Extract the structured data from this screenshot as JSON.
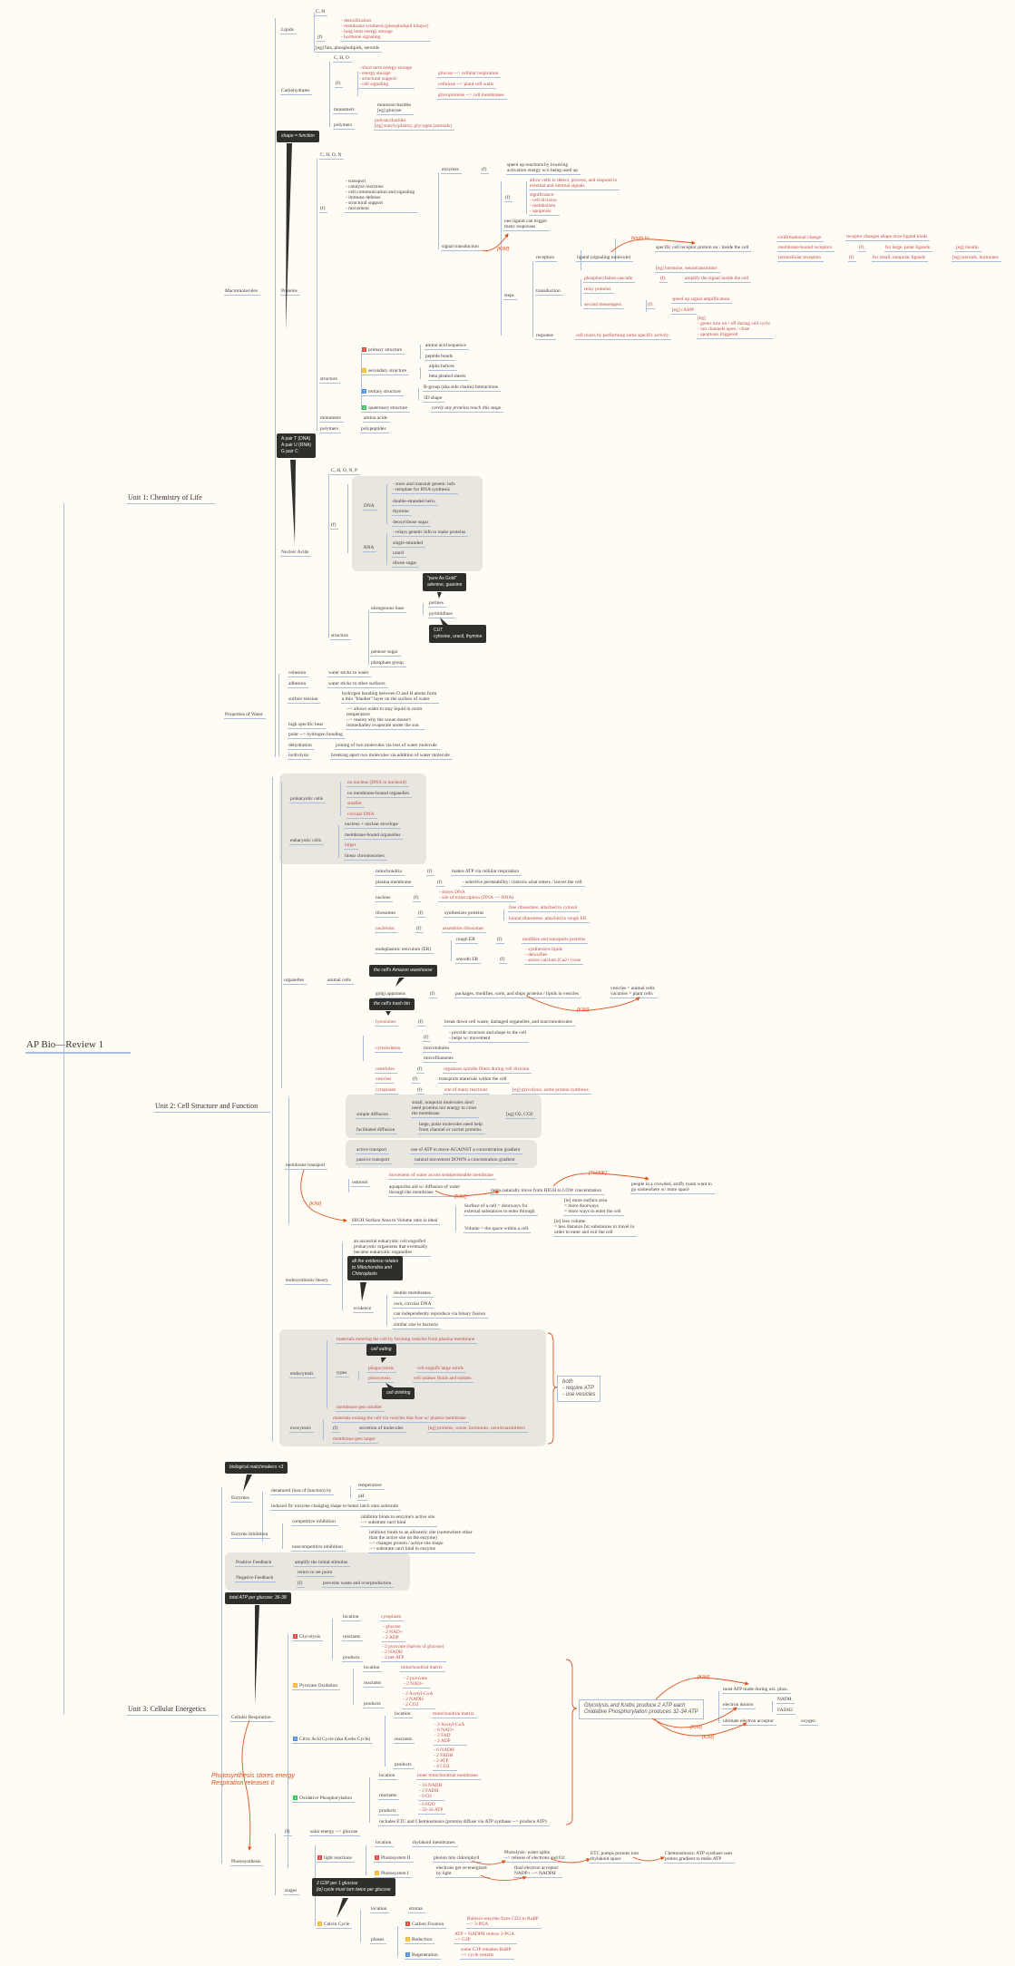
{
  "title": "AP Bio—Review 1",
  "badges": {
    "1": "1",
    "2": "2",
    "3": "3",
    "4": "4"
  },
  "badge_colors": {
    "1": "#e8473f",
    "2": "#f5b82e",
    "3": "#4a8ee8",
    "4": "#2fc45a"
  },
  "accent_color": "#e0531f",
  "nodes": {
    "unit1": "Unit 1: Chemistry of Life",
    "unit2": "Unit 2: Cell Structure and Function",
    "unit3": "Unit 3: Cellular Energetics",
    "macro": "Macromolecules",
    "lipids": "Lipids",
    "l_ch": "C, H",
    "l_f": "(f)",
    "l_flist": "- detoxification\n- membrane synthesis (phospholipid bilayer)\n- long term energy storage\n- hormone signaling",
    "l_eg": "[eg] fats, phospholipids, steroids",
    "carbs": "Carbohydrates",
    "c_cho": "C, H, O",
    "c_f": "(f)",
    "c_flist": "- short term energy storage\n- energy storage\n- structural support\n- cell signaling",
    "c_glu": "glucose --> cellular respiration",
    "c_cel": "cellulose --> plant cell walls",
    "c_gly": "glycoproteins --> cell membranes",
    "c_mon": "monomers",
    "c_monv": "monosaccharides\n[eg] glucose",
    "c_pol": "polymers",
    "c_polv": "polysaccharides\n[eg] starch (plants), glycogen (animals)",
    "co_shape": "shape = function",
    "proteins": "Proteins",
    "p_chon": "C, H, O, N",
    "p_f": "(f)",
    "p_flist": "- transport\n- catalyze reactions\n- cell communication and signaling\n- immune defense\n- structural support\n- movement",
    "enzymes": "enzymes",
    "e_f": "(f)",
    "e_v": "speed up reactions by lowering\nactivation energy w/o being used up",
    "sig": "signal transduction",
    "kim1": "[KIM]",
    "s_f": "(f)",
    "s_allow": "allow cells to detect, process, and respond to\nexternal and internal signals",
    "s_sig": "significance:\n- cell division\n- metabolism\n- apoptosis",
    "s_one": "one ligand can trigger\nmany responses",
    "steps": "steps",
    "reception": "reception",
    "ligand": "ligand (signaling molecule)",
    "binds": "binds to",
    "receptor": "specific cell receptor protein on / inside the cell",
    "r_eg": "[eg] hormone, neurotransmitter",
    "conf": "confirmational change",
    "conf_v": "receptor changes shape once ligand binds",
    "mbr": "membrane-bound receptors",
    "mbr_f": "(f)",
    "mbr_v": "for large, polar ligands",
    "mbr_eg": "[eg] insulin",
    "icr": "intracellular receptors",
    "icr_f": "(f)",
    "icr_v": "for small, nonpolar ligands",
    "icr_eg": "[eg] steroids, hormones",
    "transd": "transduction",
    "phos": "phosphorylation cascade",
    "phos_f": "(f)",
    "phos_v": "amplify the signal inside the cell",
    "relay": "relay proteins",
    "secm": "second messengers",
    "secm_f": "(f)",
    "secm_v": "speed up signal amplification",
    "secm_eg": "[eg] cAMP",
    "response": "response",
    "resp_v": "cell reacts by performing some specific activity",
    "resp_eg": "[eg]\n- genes turn on / off during cell cycle\n- ion channels open / close\n- apoptosis triggered",
    "structure": "structure",
    "prim": "primary structure",
    "prim1": "amino acid sequence",
    "prim2": "peptide bonds",
    "sec": "secondary structure",
    "sec1": "alpha helices",
    "sec2": "beta pleated sheets",
    "ter": "tertiary structure",
    "ter1": "R-group (aka side chains) interactions",
    "ter2": "3D shape",
    "quat": "quaternary structure",
    "quat1": "rarely any proteins reach this stage",
    "p_mon": "monomers",
    "p_monv": "amino acids",
    "p_pol": "polymers",
    "p_polv": "polypeptides",
    "co_pair": "A pair T (DNA)\nA pair U (RNA)\nG pair C",
    "nucleic": "Nucleic Acids",
    "n_chonp": "C, H, O, N, P",
    "n_f": "(f)",
    "dna": "DNA",
    "dna1": "- store and transmit genetic info\n- template for RNA synthesis",
    "dna2": "double-stranded helix",
    "dna3": "thymine",
    "dna4": "deoxyribose sugar",
    "rna": "RNA",
    "rna1": "- relays genetic info to make proteins",
    "rna2": "single-stranded",
    "rna3": "uracil",
    "rna4": "ribose sugar",
    "n_struct": "structure",
    "nbase": "nitrogenous base",
    "purines": "purines",
    "pyrim": "pyrimidines",
    "co_pag": "\"pure As Gold\"\nadenine, guanine",
    "co_cut": "CUT\ncytosine, uracil, thymine",
    "pentose": "pentose sugar",
    "phosph": "phosphate group",
    "water": "Properties of Water",
    "coh": "cohesion",
    "coh_v": "water sticks to water",
    "adh": "adhesion",
    "adh_v": "water sticks to other surfaces",
    "st": "surface tension",
    "st_v": "hydrogen bonding between O and H atoms form\na thin \"blanket\" layer on the surface of water",
    "shh": "high specific heat",
    "shh_v": "--> allows water to stay liquid in room\ntemperature\n--> reason why the ocean doesn't\nimmediatley evaporate under the sun",
    "polar": "polar --> hydrogen bonding",
    "dehy": "dehydration",
    "dehy_v": "joining of two molecules via loss of water molecule",
    "hydro": "hydrolysis",
    "hydro_v": "breaking apart two molecules via addition of water molecule",
    "prok": "prokaryotic cells",
    "prok1": "no nucleus (DNA in nucleoid)",
    "prok2": "no membrane-bound organelles",
    "prok3": "smaller",
    "prok4": "circular DNA",
    "euk": "eukaryotic cells",
    "euk1": "nucleus + nuclear envelope",
    "euk2": "membrane-bound organelles",
    "euk3": "larger",
    "euk4": "linear chromosomes",
    "organelles": "organelles",
    "animal": "animal cells",
    "mito": "mitochondria",
    "mito_f": "(f)",
    "mito_v": "makes ATP via cellular respiration",
    "pm": "plasma membrane",
    "pm_f": "(f)",
    "pm_v": "- selective permeability: controls what enters / leaves the cell",
    "nuc": "nucleus",
    "nuc_f": "(f)",
    "nuc_v": "- stores DNA\n- site of transcription (DNA --> RNA)",
    "ribo": "ribosomes",
    "ribo_f": "(f)",
    "ribo_v": "synthesizes proteins",
    "ribo1": "free ribosomes: attached to cytosol",
    "ribo2": "bound ribosomes: attached to rough ER",
    "nucl": "nucleolus",
    "nucl_f": "(f)",
    "nucl_v": "assembles ribosomes",
    "er": "endoplasmic reticulum (ER)",
    "rer": "rough ER",
    "rer_f": "(f)",
    "rer_v": "modifies and transports proteins",
    "ser": "smooth ER",
    "ser_f": "(f)",
    "ser_v": "- synthesizes lipids\n- detoxifies\n- stores calcium (Ca2+) ions",
    "co_amz": "the cell's Amazon warehouse",
    "golgi": "golgi apparatus",
    "golgi_f": "(f)",
    "golgi_v": "packages, modifies, sorts, and ships proteins / lipids in vesicles",
    "golgi_ves": "vesicles = animal cells\nvacuoles = plant cells",
    "kim2": "[KIM]",
    "co_trash": "the cell's trash bin",
    "lyso": "lysosomes",
    "lyso_f": "(f)",
    "lyso_v": "break down cell waste, damaged organelles, and macromolecules",
    "cyto": "cytoskeleton",
    "cyto_f": "(f)",
    "cyto_v": "- provide structure and shape to the cell\n- helps w/ movement",
    "cyto1": "microtubules",
    "cyto2": "microfilaments",
    "cent": "centrioles",
    "cent_f": "(f)",
    "cent_v": "organizes spindle fibers during cell division",
    "ves": "vesicles",
    "ves_f": "(f)",
    "ves_v": "transports materials within the cell",
    "cytop": "cytoplasm",
    "cytop_f": "(f)",
    "cytop_v": "site of many reactions",
    "cytop_eg": "[eg] glycolysis, some protein synthesis",
    "mt": "membrane transport",
    "sd": "simple diffusion",
    "sd_v": "small, nonpolar molecules don't\nneed proteins nor energy to cross\nthe membrane",
    "sd_eg": "[eg] O2, CO2",
    "fd": "facilitated diffusion",
    "fd_v": "large, polar molecules need help\nfrom channel or carrier proteins",
    "at": "active transport",
    "at_v": "use of ATP to move AGAINST a concentration gradient",
    "pt": "passive transport",
    "pt_v": "natural movement DOWN a concentration gradient",
    "osm": "osmosis",
    "osm1": "movement of water across semipermeable membrane",
    "osm2": "aquaporins aid w/ diffusion of water\nthrough the membrane",
    "osm3": "items naturally move from HIGH to LOW concentration",
    "think": "[THINK]",
    "osm4": "people in a crowded, stuffy room want to\ngo somewhere w/ more space",
    "kim3": "[KIM]",
    "kim4": "[KIM]",
    "sav": "HIGH Surface Area to Volume ratio is ideal",
    "sav1": "Surface of a cell = doorways for\nexternal substances to enter through",
    "sav1v": "[ie] more surface area\n= more doorways\n= more ways to enter the cell",
    "sav2": "Volume = the space within a cell",
    "sav2v": "[ie] less volume\n= less distance for substances to travel in\norder to enter and exit the cell",
    "endo": "endosymbiotic theory",
    "endo1": "an ancestral eukaryotic cell engulfed\nprokaryotic organisms that eventually\nbecame eukaryotic organelles",
    "co_evid": "all the evidence relates\nto Mitochondria and\nChloroplasts",
    "evid": "evidence",
    "ev1": "double membranes",
    "ev2": "own, circular DNA",
    "ev3": "can independently reproduce via binary fission",
    "ev4": "similar size to bacteria",
    "endoc": "endocytosis",
    "endoc1": "materials entering the cell by forming vesicles from plasma membrane",
    "types": "types",
    "co_eat": "cell eating",
    "phago": "phagocytosis",
    "phago_v": "cell engulfs large solids",
    "pino": "pinocytosis",
    "pino_v": "cell intakes fluids and solutes",
    "co_drink": "cell drinking",
    "endoc2": "membrane gets smaller",
    "exoc": "exocytosis",
    "exoc1": "materials exiting the cell via vesicles that fuse w/ plasma membrane",
    "exoc_f": "(f)",
    "exoc_v": "secretion of molecules",
    "exoc_eg": "[eg] proteins, waste, hormones, neurotransmitters",
    "exoc2": "membrane gets larger",
    "both": "both\n- require ATP\n- use vesicles",
    "co_match": "biological matchmakers <3",
    "enz": "Enzymes",
    "denat": "denatured (loss of function) by",
    "temp": "temperature",
    "ph": "pH",
    "induced": "induced fit: enzyme changing shape to better latch onto substrate",
    "inhib": "Enzyme Inhibition",
    "comp": "competitive inhibition",
    "comp_v": "inhibitor binds to enzyme's active site\n--> substrate can't bind",
    "ncomp": "noncompetitive inhibition",
    "ncomp_v": "inhibitor binds to an allosteric site (somewhere other\nthan the active site on the enzyme)\n--> changes protein / active site shape\n--> substrate can't bind to enzyme",
    "posf": "Positive Feedback",
    "posf_v": "amplify the initial stimulus",
    "negf": "Negative Feedback",
    "negf1": "return to set point",
    "negf_f": "(f)",
    "negf_v": "prevents waste and overproduction",
    "co_atp": "total ATP per glucose: 36-38",
    "cr": "Cellular Respiration",
    "glyc": "Glycolysis",
    "g_loc": "location",
    "g_locv": "cytoplasm",
    "g_re": "reactants",
    "g_rev": "- glucose\n- 2 NAD+\n- 2 ADP",
    "g_pr": "products",
    "g_prv": "- 2 pyruvate (halves of glucose)\n- 2 NADH\n- 2 net ATP",
    "pyr": "Pyruvate Oxidation",
    "py_loc": "location",
    "py_locv": "mitochondrial matrix",
    "py_re": "reactants",
    "py_rev": "- 2 pyruvate\n- 2 NAD+",
    "py_pr": "products",
    "py_prv": "- 2 Acetyl-CoA\n- 2 NADH\n- 2 CO2",
    "cac": "Citric Acid Cycle (aka Krebs Cycle)",
    "ca_loc": "location",
    "ca_locv": "mitochondrial matrix",
    "ca_re": "reactants",
    "ca_rev": "- 2 Acetyl-CoA\n- 6 NAD+\n- 2 FAD\n- 2 ADP",
    "ca_pr": "products",
    "ca_prv": "- 6 NADH\n- 2 FADH\n- 2 ATP\n- 4 CO2",
    "ox": "Oxidative Phosphorylation",
    "ox_loc": "location",
    "ox_locv": "inner mitochondrial membrane",
    "ox_re": "reactants",
    "ox_rev": "- 10 NADH\n- 2 FADH\n- 6 O2",
    "ox_pr": "products",
    "ox_prv": "- 6 H2O\n- 32-34 ATP",
    "ox_inc": "includes ETC and Chemiosmosis (protons diffuse via ATP synthase --> produce ATP)",
    "gk": "Glycolysis and Krebs produce 2 ATP each\nOxidative Phosphorylation produces 32-34 ATP",
    "kim5": "[KIM]",
    "kim6": "[KIM]",
    "kim7": "[KIM]",
    "most": "most ATP made during oxi. phos.",
    "edon": "electron donors",
    "nadh": "NADH",
    "fadh": "FADH2",
    "ulti": "ultimate electron acceptor",
    "oxy": "oxygen",
    "psr": "Photosynthesis stores energy\nRespiration releases it",
    "photo": "Photosynthesis",
    "ph_f": "(f)",
    "ph_fv": "solar energy --> glucose",
    "stages": "stages",
    "lr": "light reactions",
    "lr_loc": "location",
    "lr_locv": "thylakoid membranes",
    "ps2": "Photosystem II",
    "ps2_v": "photon hits chlorophyll",
    "photol": "Photolysis: water splits\n--> release of electrons and O2",
    "etc": "ETC pumps protons into\nthylakoid space",
    "chemi": "Chemiosmosis: ATP synthase uses\nproton gradient to make ATP",
    "ps1": "Photosystem I",
    "ps1_v": "electrons get re-energized\nby light",
    "final": "final electron acceptor:\nNADP+ --> NADPH",
    "co_g3p": "2 G3P per 1 glucose\n[ie] cycle must turn twice per glucose",
    "calvin": "Calvin Cycle",
    "cv_loc": "location",
    "cv_locv": "stroma",
    "phases": "phases",
    "cfix": "Carbon Fixation",
    "cfix_v": "Rubisco enzyme fixes CO2 to RuBP\n--> 3-PGA",
    "red": "Reduction",
    "red_v": "ATP + NADPH reduce 3-PGA\n--> G3P",
    "regen": "Regeneration",
    "regen_v": "some G3P remakes RuBP\n--> cycle restarts"
  }
}
